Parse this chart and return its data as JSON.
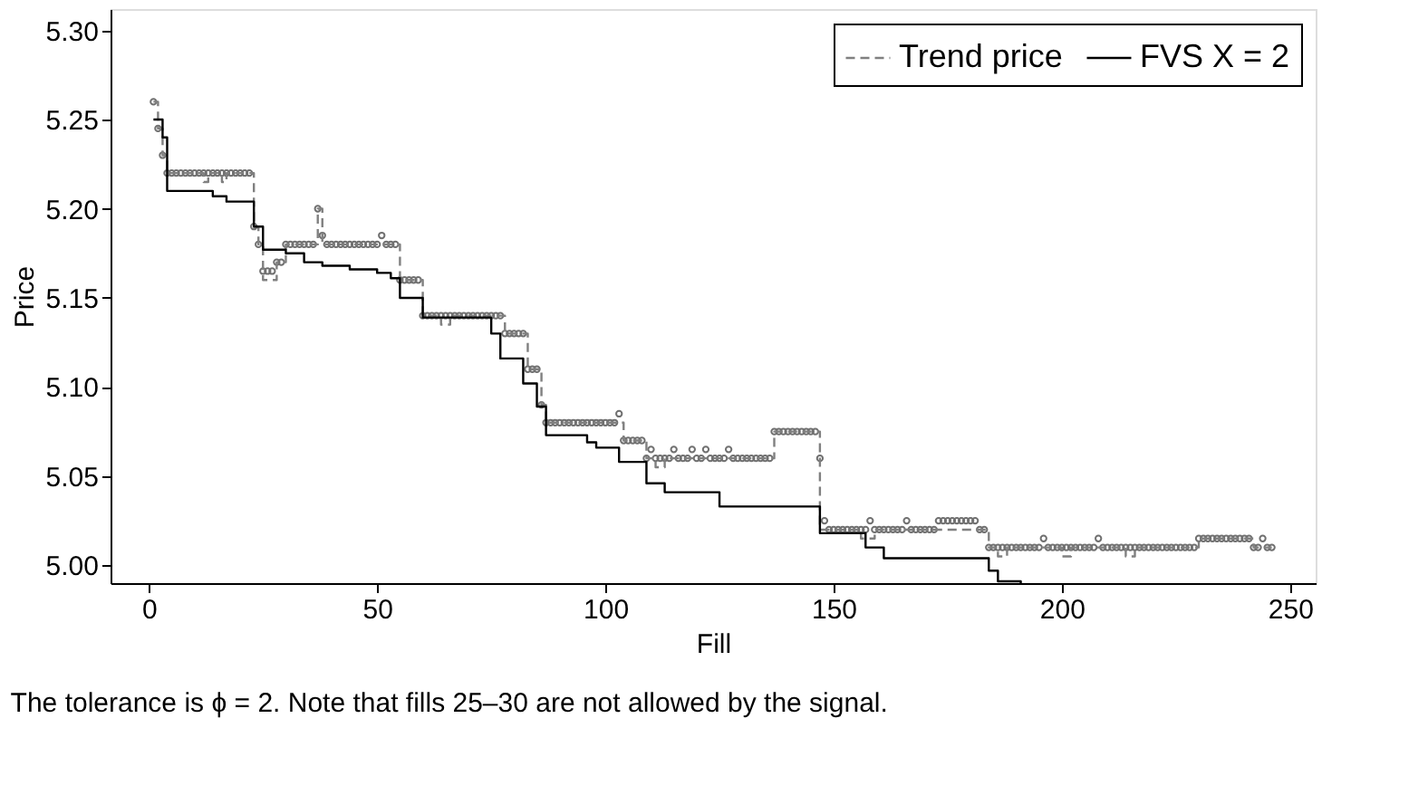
{
  "chart_data": {
    "type": "step",
    "xlabel": "Fill",
    "ylabel": "Price",
    "xlim": [
      -8.4,
      255.6
    ],
    "ylim": [
      4.99,
      5.312
    ],
    "xticks": [
      0,
      50,
      100,
      150,
      200,
      250
    ],
    "yticks": [
      {
        "value": 5.0,
        "label": "5.00"
      },
      5.05,
      {
        "value": 5.1,
        "label": "5.10"
      },
      5.15,
      {
        "value": 5.2,
        "label": "5.20"
      },
      5.25,
      {
        "value": 5.3,
        "label": "5.30"
      }
    ],
    "grid": false,
    "legend": "top right",
    "annotations": [
      "The tolerance is ϕ = 2. Note that fills 25–30 are not allowed by the signal."
    ],
    "series": [
      {
        "type": "scatter",
        "marker": "circle",
        "color": "#707070",
        "x": [
          1,
          2,
          3,
          4,
          5,
          6,
          7,
          8,
          9,
          10,
          11,
          12,
          13,
          14,
          15,
          16,
          17,
          18,
          19,
          20,
          21,
          22,
          23,
          24,
          25,
          26,
          27,
          28,
          29,
          30,
          31,
          32,
          33,
          34,
          35,
          36,
          37,
          38,
          39,
          40,
          41,
          42,
          43,
          44,
          45,
          46,
          47,
          48,
          49,
          50,
          51,
          52,
          53,
          54,
          55,
          56,
          57,
          58,
          59,
          60,
          61,
          62,
          63,
          64,
          65,
          66,
          67,
          68,
          69,
          70,
          71,
          72,
          73,
          74,
          75,
          76,
          77,
          78,
          79,
          80,
          81,
          82,
          83,
          84,
          85,
          86,
          87,
          88,
          89,
          90,
          91,
          92,
          93,
          94,
          95,
          96,
          97,
          98,
          99,
          100,
          101,
          102,
          103,
          104,
          105,
          106,
          107,
          108,
          109,
          110,
          111,
          112,
          113,
          114,
          115,
          116,
          117,
          118,
          119,
          120,
          121,
          122,
          123,
          124,
          125,
          126,
          127,
          128,
          129,
          130,
          131,
          132,
          133,
          134,
          135,
          136,
          137,
          138,
          139,
          140,
          141,
          142,
          143,
          144,
          145,
          146,
          147,
          148,
          149,
          150,
          151,
          152,
          153,
          154,
          155,
          156,
          157,
          158,
          159,
          160,
          161,
          162,
          163,
          164,
          165,
          166,
          167,
          168,
          169,
          170,
          171,
          172,
          173,
          174,
          175,
          176,
          177,
          178,
          179,
          180,
          181,
          182,
          183,
          184,
          185,
          186,
          187,
          188,
          189,
          190,
          191,
          192,
          193,
          194,
          195,
          196,
          197,
          198,
          199,
          200,
          201,
          202,
          203,
          204,
          205,
          206,
          207,
          208,
          209,
          210,
          211,
          212,
          213,
          214,
          215,
          216,
          217,
          218,
          219,
          220,
          221,
          222,
          223,
          224,
          225,
          226,
          227,
          228,
          229,
          230,
          231,
          232,
          233,
          234,
          235,
          236,
          237,
          238,
          239,
          240,
          241,
          242,
          243,
          244,
          245,
          246
        ],
        "values": [
          5.26,
          5.245,
          5.23,
          5.22,
          5.22,
          5.22,
          5.22,
          5.22,
          5.22,
          5.22,
          5.22,
          5.22,
          5.22,
          5.22,
          5.22,
          5.22,
          5.22,
          5.22,
          5.22,
          5.22,
          5.22,
          5.22,
          5.19,
          5.18,
          5.165,
          5.165,
          5.165,
          5.17,
          5.17,
          5.18,
          5.18,
          5.18,
          5.18,
          5.18,
          5.18,
          5.18,
          5.2,
          5.185,
          5.18,
          5.18,
          5.18,
          5.18,
          5.18,
          5.18,
          5.18,
          5.18,
          5.18,
          5.18,
          5.18,
          5.18,
          5.185,
          5.18,
          5.18,
          5.18,
          5.16,
          5.16,
          5.16,
          5.16,
          5.16,
          5.14,
          5.14,
          5.14,
          5.14,
          5.14,
          5.14,
          5.14,
          5.14,
          5.14,
          5.14,
          5.14,
          5.14,
          5.14,
          5.14,
          5.14,
          5.14,
          5.14,
          5.14,
          5.13,
          5.13,
          5.13,
          5.13,
          5.13,
          5.11,
          5.11,
          5.11,
          5.09,
          5.08,
          5.08,
          5.08,
          5.08,
          5.08,
          5.08,
          5.08,
          5.08,
          5.08,
          5.08,
          5.08,
          5.08,
          5.08,
          5.08,
          5.08,
          5.08,
          5.085,
          5.07,
          5.07,
          5.07,
          5.07,
          5.07,
          5.06,
          5.065,
          5.06,
          5.06,
          5.06,
          5.06,
          5.065,
          5.06,
          5.06,
          5.06,
          5.065,
          5.06,
          5.06,
          5.065,
          5.06,
          5.06,
          5.06,
          5.06,
          5.065,
          5.06,
          5.06,
          5.06,
          5.06,
          5.06,
          5.06,
          5.06,
          5.06,
          5.06,
          5.075,
          5.075,
          5.075,
          5.075,
          5.075,
          5.075,
          5.075,
          5.075,
          5.075,
          5.075,
          5.06,
          5.025,
          5.02,
          5.02,
          5.02,
          5.02,
          5.02,
          5.02,
          5.02,
          5.02,
          5.02,
          5.025,
          5.02,
          5.02,
          5.02,
          5.02,
          5.02,
          5.02,
          5.02,
          5.025,
          5.02,
          5.02,
          5.02,
          5.02,
          5.02,
          5.02,
          5.025,
          5.025,
          5.025,
          5.025,
          5.025,
          5.025,
          5.025,
          5.025,
          5.025,
          5.02,
          5.02,
          5.01,
          5.01,
          5.01,
          5.01,
          5.01,
          5.01,
          5.01,
          5.01,
          5.01,
          5.01,
          5.01,
          5.01,
          5.015,
          5.01,
          5.01,
          5.01,
          5.01,
          5.01,
          5.01,
          5.01,
          5.01,
          5.01,
          5.01,
          5.01,
          5.015,
          5.01,
          5.01,
          5.01,
          5.01,
          5.01,
          5.01,
          5.01,
          5.01,
          5.01,
          5.01,
          5.01,
          5.01,
          5.01,
          5.01,
          5.01,
          5.01,
          5.01,
          5.01,
          5.01,
          5.01,
          5.01,
          5.015,
          5.015,
          5.015,
          5.015,
          5.015,
          5.015,
          5.015,
          5.015,
          5.015,
          5.015,
          5.015,
          5.015,
          5.01,
          5.01,
          5.015,
          5.01,
          5.01
        ]
      },
      {
        "name": "Trend price",
        "line_style": "dashed",
        "color": "#808080",
        "x": [
          1,
          2,
          3,
          4,
          12,
          13,
          16,
          17,
          23,
          24,
          25,
          28,
          30,
          37,
          38,
          55,
          60,
          64,
          66,
          78,
          83,
          86,
          87,
          104,
          109,
          111,
          113,
          137,
          147,
          156,
          159,
          184,
          186,
          188,
          200,
          202,
          214,
          216,
          230,
          242,
          246
        ],
        "values": [
          5.26,
          5.245,
          5.23,
          5.22,
          5.215,
          5.22,
          5.215,
          5.22,
          5.19,
          5.18,
          5.16,
          5.17,
          5.18,
          5.2,
          5.18,
          5.16,
          5.14,
          5.135,
          5.14,
          5.13,
          5.11,
          5.09,
          5.08,
          5.07,
          5.06,
          5.055,
          5.06,
          5.075,
          5.02,
          5.015,
          5.02,
          5.01,
          5.005,
          5.01,
          5.005,
          5.01,
          5.005,
          5.01,
          5.015,
          5.01,
          5.01
        ]
      },
      {
        "name": "FVS X = 2",
        "line_style": "solid",
        "color": "#000000",
        "x": [
          1,
          3,
          4,
          14,
          17,
          23,
          25,
          30,
          34,
          38,
          44,
          50,
          53,
          55,
          60,
          75,
          77,
          82,
          85,
          87,
          96,
          98,
          103,
          109,
          113,
          125,
          147,
          157,
          161,
          184,
          186,
          191
        ],
        "values": [
          5.25,
          5.24,
          5.21,
          5.207,
          5.204,
          5.19,
          5.177,
          5.175,
          5.17,
          5.168,
          5.166,
          5.164,
          5.161,
          5.15,
          5.139,
          5.13,
          5.116,
          5.102,
          5.089,
          5.073,
          5.069,
          5.066,
          5.058,
          5.046,
          5.041,
          5.033,
          5.018,
          5.01,
          5.004,
          4.997,
          4.991,
          4.99
        ]
      }
    ]
  }
}
